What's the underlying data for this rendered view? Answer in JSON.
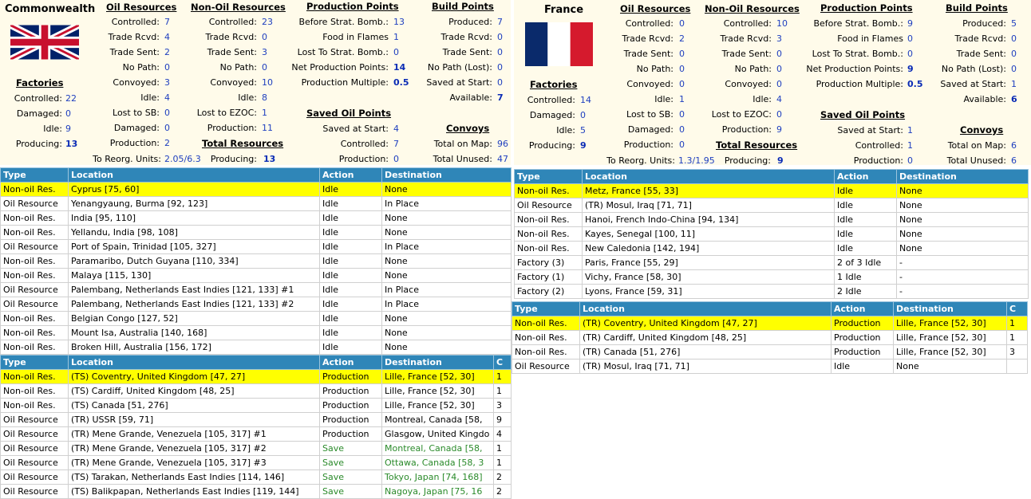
{
  "left": {
    "country": "Commonwealth",
    "oil": {
      "title": "Oil Resources",
      "rows": [
        {
          "label": "Controlled:",
          "value": "7"
        },
        {
          "label": "Trade Rcvd:",
          "value": "4"
        },
        {
          "label": "Trade Sent:",
          "value": "2"
        },
        {
          "label": "No Path:",
          "value": "0"
        },
        {
          "label": "Convoyed:",
          "value": "3"
        },
        {
          "label": "Idle:",
          "value": "4"
        },
        {
          "label": "Lost to SB:",
          "value": "0"
        },
        {
          "label": "Damaged:",
          "value": "0"
        },
        {
          "label": "Production:",
          "value": "2"
        }
      ]
    },
    "nonoil": {
      "title": "Non-Oil Resources",
      "rows": [
        {
          "label": "Controlled:",
          "value": "23"
        },
        {
          "label": "Trade Rcvd:",
          "value": "0"
        },
        {
          "label": "Trade Sent:",
          "value": "3"
        },
        {
          "label": "No Path:",
          "value": "0"
        },
        {
          "label": "Convoyed:",
          "value": "10"
        },
        {
          "label": "Idle:",
          "value": "8"
        },
        {
          "label": "Lost to EZOC:",
          "value": "1"
        },
        {
          "label": "Production:",
          "value": "11"
        }
      ]
    },
    "prod": {
      "title": "Production Points",
      "rows": [
        {
          "label": "Before Strat. Bomb.:",
          "value": "13"
        },
        {
          "label": "Food in Flames",
          "value": "1"
        },
        {
          "label": "Lost To Strat. Bomb.:",
          "value": "0"
        },
        {
          "label": "Net Production Points:",
          "value": "14"
        },
        {
          "label": "Production Multiple:",
          "value": "0.5"
        }
      ]
    },
    "build": {
      "title": "Build Points",
      "rows": [
        {
          "label": "Produced:",
          "value": "7"
        },
        {
          "label": "Trade Rcvd:",
          "value": "0"
        },
        {
          "label": "Trade Sent:",
          "value": "0"
        },
        {
          "label": "No Path (Lost):",
          "value": "0"
        },
        {
          "label": "Saved at Start:",
          "value": "0"
        },
        {
          "label": "Available:",
          "value": "7"
        }
      ]
    },
    "factories": {
      "title": "Factories",
      "rows": [
        {
          "label": "Controlled:",
          "value": "22"
        },
        {
          "label": "Damaged:",
          "value": "0"
        },
        {
          "label": "Idle:",
          "value": "9"
        },
        {
          "label": "Producing:",
          "value": "13"
        }
      ]
    },
    "saved_oil": {
      "title": "Saved Oil Points",
      "rows": [
        {
          "label": "Saved at Start:",
          "value": "4"
        },
        {
          "label": "Controlled:",
          "value": "7"
        },
        {
          "label": "Production:",
          "value": "0"
        }
      ]
    },
    "convoys": {
      "title": "Convoys",
      "rows": [
        {
          "label": "Total on Map:",
          "value": "96"
        },
        {
          "label": "Total Unused:",
          "value": "47"
        }
      ]
    },
    "total": {
      "title": "Total Resources",
      "reorg_label": "To Reorg. Units:",
      "reorg_value": "2.05/6.3",
      "producing_label": "Producing:",
      "producing_value": "13"
    },
    "table1": {
      "headers": [
        "Type",
        "Location",
        "Action",
        "Destination"
      ],
      "rows": [
        [
          "Non-oil Res.",
          "Cyprus [75, 60]",
          "Idle",
          "None"
        ],
        [
          "Oil Resource",
          "Yenangyaung, Burma [92, 123]",
          "Idle",
          "In Place"
        ],
        [
          "Non-oil Res.",
          "India [95, 110]",
          "Idle",
          "None"
        ],
        [
          "Non-oil Res.",
          "Yellandu, India [98, 108]",
          "Idle",
          "None"
        ],
        [
          "Oil Resource",
          "Port of Spain, Trinidad [105, 327]",
          "Idle",
          "In Place"
        ],
        [
          "Non-oil Res.",
          "Paramaribo, Dutch Guyana [110, 334]",
          "Idle",
          "None"
        ],
        [
          "Non-oil Res.",
          "Malaya [115, 130]",
          "Idle",
          "None"
        ],
        [
          "Oil Resource",
          "Palembang, Netherlands East Indies [121, 133] #1",
          "Idle",
          "In Place"
        ],
        [
          "Oil Resource",
          "Palembang, Netherlands East Indies [121, 133] #2",
          "Idle",
          "In Place"
        ],
        [
          "Non-oil Res.",
          "Belgian Congo [127, 52]",
          "Idle",
          "None"
        ],
        [
          "Non-oil Res.",
          "Mount Isa, Australia [140, 168]",
          "Idle",
          "None"
        ],
        [
          "Non-oil Res.",
          "Broken Hill, Australia [156, 172]",
          "Idle",
          "None"
        ]
      ]
    },
    "table2": {
      "headers": [
        "Type",
        "Location",
        "Action",
        "Destination",
        "C"
      ],
      "rows": [
        [
          "Non-oil Res.",
          "(TS) Coventry, United Kingdom [47, 27]",
          "Production",
          "Lille, France [52, 30]",
          "1"
        ],
        [
          "Non-oil Res.",
          "(TS) Cardiff, United Kingdom [48, 25]",
          "Production",
          "Lille, France [52, 30]",
          "1"
        ],
        [
          "Non-oil Res.",
          "(TS) Canada [51, 276]",
          "Production",
          "Lille, France [52, 30]",
          "3"
        ],
        [
          "Oil Resource",
          "(TR) USSR [59, 71]",
          "Production",
          "Montreal, Canada [58,",
          "9"
        ],
        [
          "Oil Resource",
          "(TR) Mene Grande, Venezuela [105, 317] #1",
          "Production",
          "Glasgow, United Kingdo",
          "4"
        ],
        [
          "Oil Resource",
          "(TR) Mene Grande, Venezuela [105, 317] #2",
          "Save",
          "Montreal, Canada [58,",
          "1"
        ],
        [
          "Oil Resource",
          "(TR) Mene Grande, Venezuela [105, 317] #3",
          "Save",
          "Ottawa, Canada [58, 3",
          "1"
        ],
        [
          "Oil Resource",
          "(TS) Tarakan, Netherlands East Indies [114, 146]",
          "Save",
          "Tokyo, Japan [74, 168]",
          "2"
        ],
        [
          "Oil Resource",
          "(TS) Balikpapan, Netherlands East Indies [119, 144]",
          "Save",
          "Nagoya, Japan [75, 16",
          "2"
        ]
      ]
    }
  },
  "right": {
    "country": "France",
    "oil": {
      "title": "Oil Resources",
      "rows": [
        {
          "label": "Controlled:",
          "value": "0"
        },
        {
          "label": "Trade Rcvd:",
          "value": "2"
        },
        {
          "label": "Trade Sent:",
          "value": "0"
        },
        {
          "label": "No Path:",
          "value": "0"
        },
        {
          "label": "Convoyed:",
          "value": "0"
        },
        {
          "label": "Idle:",
          "value": "1"
        },
        {
          "label": "Lost to SB:",
          "value": "0"
        },
        {
          "label": "Damaged:",
          "value": "0"
        },
        {
          "label": "Production:",
          "value": "0"
        }
      ]
    },
    "nonoil": {
      "title": "Non-Oil Resources",
      "rows": [
        {
          "label": "Controlled:",
          "value": "10"
        },
        {
          "label": "Trade Rcvd:",
          "value": "3"
        },
        {
          "label": "Trade Sent:",
          "value": "0"
        },
        {
          "label": "No Path:",
          "value": "0"
        },
        {
          "label": "Convoyed:",
          "value": "0"
        },
        {
          "label": "Idle:",
          "value": "4"
        },
        {
          "label": "Lost to EZOC:",
          "value": "0"
        },
        {
          "label": "Production:",
          "value": "9"
        }
      ]
    },
    "prod": {
      "title": "Production Points",
      "rows": [
        {
          "label": "Before Strat. Bomb.:",
          "value": "9"
        },
        {
          "label": "Food in Flames",
          "value": "0"
        },
        {
          "label": "Lost To Strat. Bomb.:",
          "value": "0"
        },
        {
          "label": "Net Production Points:",
          "value": "9"
        },
        {
          "label": "Production Multiple:",
          "value": "0.5"
        }
      ]
    },
    "build": {
      "title": "Build Points",
      "rows": [
        {
          "label": "Produced:",
          "value": "5"
        },
        {
          "label": "Trade Rcvd:",
          "value": "0"
        },
        {
          "label": "Trade Sent:",
          "value": "0"
        },
        {
          "label": "No Path (Lost):",
          "value": "0"
        },
        {
          "label": "Saved at Start:",
          "value": "1"
        },
        {
          "label": "Available:",
          "value": "6"
        }
      ]
    },
    "factories": {
      "title": "Factories",
      "rows": [
        {
          "label": "Controlled:",
          "value": "14"
        },
        {
          "label": "Damaged:",
          "value": "0"
        },
        {
          "label": "Idle:",
          "value": "5"
        },
        {
          "label": "Producing:",
          "value": "9"
        }
      ]
    },
    "saved_oil": {
      "title": "Saved Oil Points",
      "rows": [
        {
          "label": "Saved at Start:",
          "value": "1"
        },
        {
          "label": "Controlled:",
          "value": "1"
        },
        {
          "label": "Production:",
          "value": "0"
        }
      ]
    },
    "convoys": {
      "title": "Convoys",
      "rows": [
        {
          "label": "Total on Map:",
          "value": "6"
        },
        {
          "label": "Total Unused:",
          "value": "6"
        }
      ]
    },
    "total": {
      "title": "Total Resources",
      "reorg_label": "To Reorg. Units:",
      "reorg_value": "1.3/1.95",
      "producing_label": "Producing:",
      "producing_value": "9"
    },
    "table1": {
      "headers": [
        "Type",
        "Location",
        "Action",
        "Destination"
      ],
      "rows": [
        [
          "Non-oil Res.",
          "Metz, France [55, 33]",
          "Idle",
          "None"
        ],
        [
          "Oil Resource",
          "(TR) Mosul, Iraq [71, 71]",
          "Idle",
          "None"
        ],
        [
          "Non-oil Res.",
          "Hanoi, French Indo-China [94, 134]",
          "Idle",
          "None"
        ],
        [
          "Non-oil Res.",
          "Kayes, Senegal [100, 11]",
          "Idle",
          "None"
        ],
        [
          "Non-oil Res.",
          "New Caledonia [142, 194]",
          "Idle",
          "None"
        ],
        [
          "Factory (3)",
          "Paris, France [55, 29]",
          "2 of 3 Idle",
          "-"
        ],
        [
          "Factory (1)",
          "Vichy, France [58, 30]",
          "1 Idle",
          "-"
        ],
        [
          "Factory (2)",
          "Lyons, France [59, 31]",
          "2 Idle",
          "-"
        ]
      ]
    },
    "table2": {
      "headers": [
        "Type",
        "Location",
        "Action",
        "Destination",
        "C"
      ],
      "rows": [
        [
          "Non-oil Res.",
          "(TR) Coventry, United Kingdom [47, 27]",
          "Production",
          "Lille, France [52, 30]",
          "1"
        ],
        [
          "Non-oil Res.",
          "(TR) Cardiff, United Kingdom [48, 25]",
          "Production",
          "Lille, France [52, 30]",
          "1"
        ],
        [
          "Non-oil Res.",
          "(TR) Canada [51, 276]",
          "Production",
          "Lille, France [52, 30]",
          "3"
        ],
        [
          "Oil Resource",
          "(TR) Mosul, Iraq [71, 71]",
          "Idle",
          "None",
          ""
        ]
      ]
    }
  },
  "colors": {
    "header_bg": "#2f86b8",
    "selected_row": "#ffff00",
    "panel_bg": "#fffbea",
    "value_blue": "#1f3fbf",
    "save_green": "#2a8a2a"
  }
}
